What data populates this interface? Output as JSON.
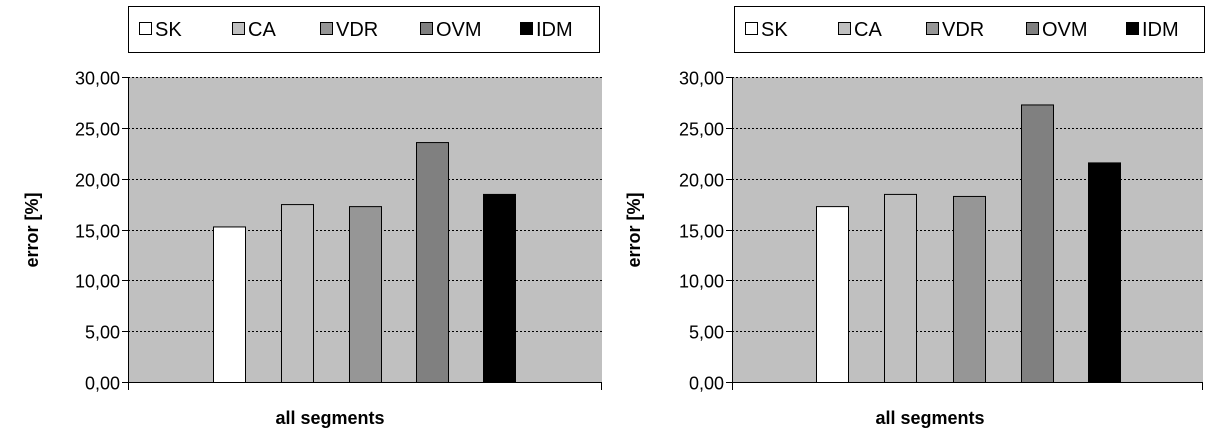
{
  "chart_data": [
    {
      "type": "bar",
      "categories": [
        "all segments"
      ],
      "xlabel": "all segments",
      "ylabel": "error [%]",
      "ylim": [
        0,
        30
      ],
      "yticks": [
        "0,00",
        "5,00",
        "10,00",
        "15,00",
        "20,00",
        "25,00",
        "30,00"
      ],
      "grid": true,
      "legend_position": "top",
      "plot_background": "#C0C0C0",
      "series": [
        {
          "name": "SK",
          "values": [
            15.3
          ],
          "color": "#FFFFFF"
        },
        {
          "name": "CA",
          "values": [
            17.5
          ],
          "color": "#C0C0C0"
        },
        {
          "name": "VDR",
          "values": [
            17.3
          ],
          "color": "#969696"
        },
        {
          "name": "OVM",
          "values": [
            23.6
          ],
          "color": "#808080"
        },
        {
          "name": "IDM",
          "values": [
            18.5
          ],
          "color": "#000000"
        }
      ]
    },
    {
      "type": "bar",
      "categories": [
        "all segments"
      ],
      "xlabel": "all segments",
      "ylabel": "error [%]",
      "ylim": [
        0,
        30
      ],
      "yticks": [
        "0,00",
        "5,00",
        "10,00",
        "15,00",
        "20,00",
        "25,00",
        "30,00"
      ],
      "grid": true,
      "legend_position": "top",
      "plot_background": "#C0C0C0",
      "series": [
        {
          "name": "SK",
          "values": [
            17.3
          ],
          "color": "#FFFFFF"
        },
        {
          "name": "CA",
          "values": [
            18.5
          ],
          "color": "#C0C0C0"
        },
        {
          "name": "VDR",
          "values": [
            18.3
          ],
          "color": "#969696"
        },
        {
          "name": "OVM",
          "values": [
            27.3
          ],
          "color": "#808080"
        },
        {
          "name": "IDM",
          "values": [
            21.6
          ],
          "color": "#000000"
        }
      ]
    }
  ]
}
